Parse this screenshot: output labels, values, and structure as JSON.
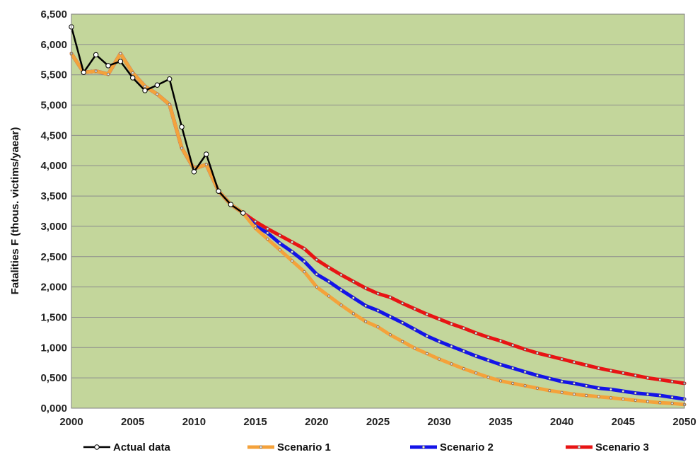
{
  "chart_data": {
    "type": "line",
    "title": "",
    "xlabel": "",
    "ylabel": "Fatalities F (thous. victims/yaear)",
    "xlim": [
      2000,
      2050
    ],
    "ylim": [
      0,
      6500
    ],
    "x_ticks": [
      2000,
      2005,
      2010,
      2015,
      2020,
      2025,
      2030,
      2035,
      2040,
      2045,
      2050
    ],
    "y_ticks": [
      0,
      500,
      1000,
      1500,
      2000,
      2500,
      3000,
      3500,
      4000,
      4500,
      5000,
      5500,
      6000,
      6500
    ],
    "x_tick_labels": [
      "2000",
      "2005",
      "2010",
      "2015",
      "2020",
      "2025",
      "2030",
      "2035",
      "2040",
      "2045",
      "2050"
    ],
    "y_tick_labels": [
      "0,000",
      "0,500",
      "1,000",
      "1,500",
      "2,000",
      "2,500",
      "3,000",
      "3,500",
      "4,000",
      "4,500",
      "5,000",
      "5,500",
      "6,000",
      "6,500"
    ],
    "grid": "horizontal",
    "background_color": "#c3d69b",
    "legend_position": "bottom",
    "series": [
      {
        "name": "Actual data",
        "color": "#000000",
        "x": [
          2000,
          2001,
          2002,
          2003,
          2004,
          2005,
          2006,
          2007,
          2008,
          2009,
          2010,
          2011,
          2012,
          2013,
          2014
        ],
        "y": [
          6290,
          5540,
          5830,
          5650,
          5720,
          5450,
          5240,
          5330,
          5430,
          4640,
          3900,
          4190,
          3580,
          3360,
          3220
        ]
      },
      {
        "name": "Scenario 1",
        "color": "#f4a23b",
        "x": [
          2000,
          2001,
          2002,
          2003,
          2004,
          2005,
          2006,
          2007,
          2008,
          2009,
          2010,
          2011,
          2012,
          2013,
          2014,
          2015,
          2016,
          2017,
          2018,
          2019,
          2020,
          2021,
          2022,
          2023,
          2024,
          2025,
          2026,
          2027,
          2028,
          2029,
          2030,
          2031,
          2032,
          2033,
          2034,
          2035,
          2036,
          2037,
          2038,
          2039,
          2040,
          2041,
          2042,
          2043,
          2044,
          2045,
          2046,
          2047,
          2048,
          2049,
          2050
        ],
        "y": [
          5850,
          5540,
          5560,
          5510,
          5850,
          5530,
          5310,
          5180,
          5010,
          4290,
          3950,
          4020,
          3580,
          3360,
          3220,
          2970,
          2790,
          2610,
          2430,
          2250,
          2000,
          1850,
          1700,
          1560,
          1430,
          1340,
          1210,
          1100,
          990,
          900,
          810,
          730,
          650,
          580,
          510,
          450,
          410,
          370,
          330,
          290,
          260,
          230,
          210,
          190,
          170,
          150,
          130,
          110,
          90,
          80,
          60
        ]
      },
      {
        "name": "Scenario 2",
        "color": "#1414e8",
        "x": [
          2000,
          2001,
          2002,
          2003,
          2004,
          2005,
          2006,
          2007,
          2008,
          2009,
          2010,
          2011,
          2012,
          2013,
          2014,
          2015,
          2016,
          2017,
          2018,
          2019,
          2020,
          2021,
          2022,
          2023,
          2024,
          2025,
          2026,
          2027,
          2028,
          2029,
          2030,
          2031,
          2032,
          2033,
          2034,
          2035,
          2036,
          2037,
          2038,
          2039,
          2040,
          2041,
          2042,
          2043,
          2044,
          2045,
          2046,
          2047,
          2048,
          2049,
          2050
        ],
        "y": [
          5850,
          5540,
          5560,
          5510,
          5850,
          5530,
          5310,
          5180,
          5010,
          4290,
          3950,
          4020,
          3580,
          3360,
          3220,
          3010,
          2890,
          2720,
          2580,
          2420,
          2210,
          2090,
          1950,
          1820,
          1690,
          1610,
          1510,
          1410,
          1300,
          1190,
          1100,
          1020,
          940,
          860,
          790,
          720,
          660,
          600,
          540,
          490,
          440,
          410,
          370,
          330,
          310,
          280,
          250,
          230,
          210,
          180,
          150
        ]
      },
      {
        "name": "Scenario 3",
        "color": "#e81414",
        "x": [
          2000,
          2001,
          2002,
          2003,
          2004,
          2005,
          2006,
          2007,
          2008,
          2009,
          2010,
          2011,
          2012,
          2013,
          2014,
          2015,
          2016,
          2017,
          2018,
          2019,
          2020,
          2021,
          2022,
          2023,
          2024,
          2025,
          2026,
          2027,
          2028,
          2029,
          2030,
          2031,
          2032,
          2033,
          2034,
          2035,
          2036,
          2037,
          2038,
          2039,
          2040,
          2041,
          2042,
          2043,
          2044,
          2045,
          2046,
          2047,
          2048,
          2049,
          2050
        ],
        "y": [
          5850,
          5540,
          5560,
          5510,
          5850,
          5530,
          5310,
          5180,
          5010,
          4290,
          3950,
          4020,
          3580,
          3360,
          3220,
          3080,
          2960,
          2850,
          2740,
          2630,
          2450,
          2320,
          2200,
          2090,
          1980,
          1890,
          1830,
          1730,
          1640,
          1550,
          1470,
          1390,
          1320,
          1240,
          1170,
          1110,
          1040,
          970,
          910,
          860,
          810,
          760,
          710,
          660,
          620,
          580,
          540,
          500,
          470,
          440,
          410
        ]
      }
    ]
  }
}
